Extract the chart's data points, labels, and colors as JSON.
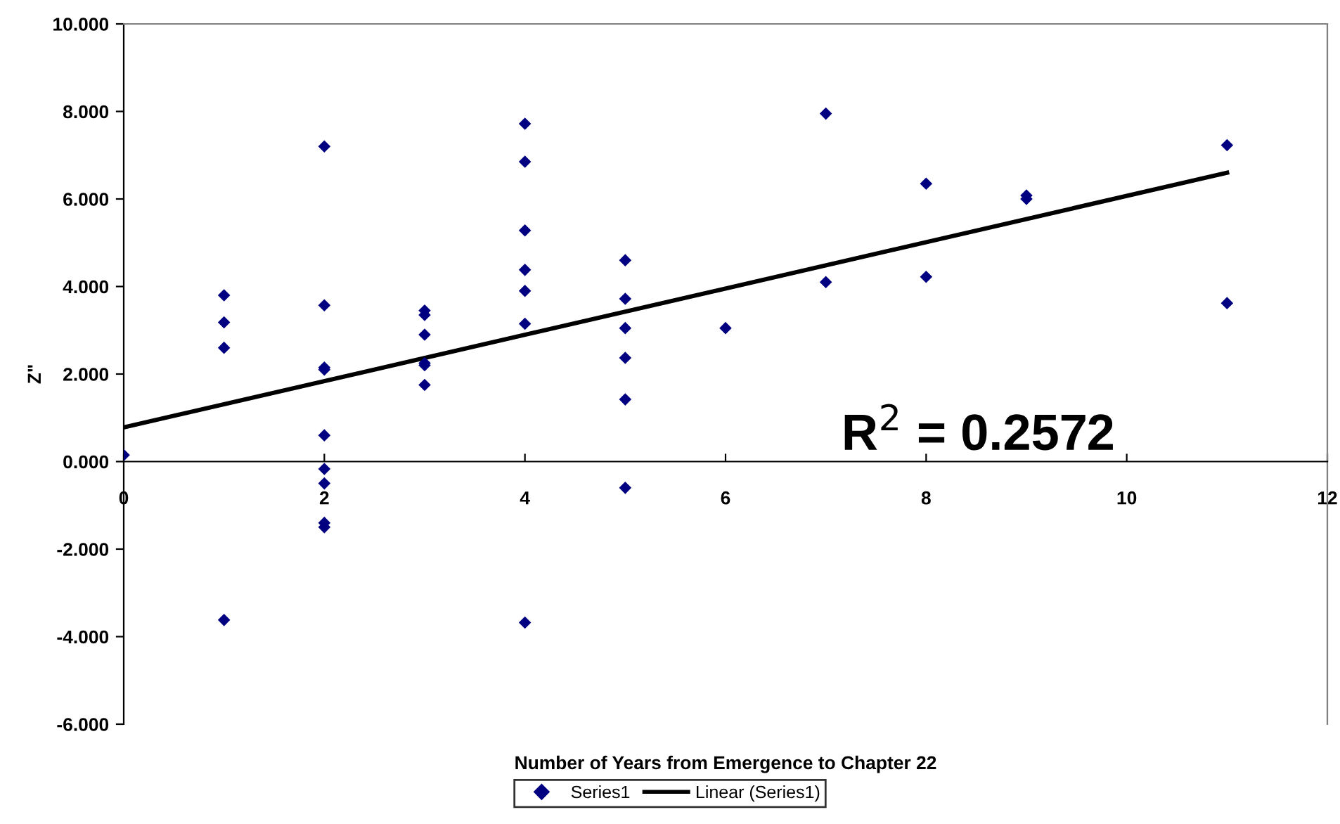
{
  "chart_data": {
    "type": "scatter",
    "xlabel": "Number of Years from Emergence to Chapter 22",
    "ylabel": "Z\"",
    "xlim": [
      0,
      12
    ],
    "xticks": [
      0,
      2,
      4,
      6,
      8,
      10,
      12
    ],
    "ylim": [
      -6,
      10
    ],
    "yticks": [
      {
        "value": -6,
        "label": "-6.000"
      },
      {
        "value": -4,
        "label": "-4.000"
      },
      {
        "value": -2,
        "label": "-2.000"
      },
      {
        "value": 0,
        "label": "0.000"
      },
      {
        "value": 2,
        "label": "2.000"
      },
      {
        "value": 4,
        "label": "4.000"
      },
      {
        "value": 6,
        "label": "6.000"
      },
      {
        "value": 8,
        "label": "8.000"
      },
      {
        "value": 10,
        "label": "10.000"
      }
    ],
    "grid": false,
    "legend": "bottom",
    "annotations": [
      "R$^{2}$ = 0.2572"
    ],
    "series": [
      {
        "name": "Series1",
        "marker": "diamond",
        "color": "#000080",
        "x": [
          0,
          1,
          1,
          1,
          1,
          2,
          2,
          2,
          2,
          2,
          2,
          2,
          2,
          2,
          3,
          3,
          3,
          3,
          3,
          3,
          4,
          4,
          4,
          4,
          4,
          4,
          4,
          5,
          5,
          5,
          5,
          5,
          5,
          6,
          7,
          7,
          8,
          8,
          9,
          9,
          11,
          11
        ],
        "values": [
          0.15,
          3.8,
          3.18,
          2.6,
          -3.62,
          7.2,
          3.57,
          2.15,
          2.1,
          0.6,
          -0.17,
          -0.5,
          -1.4,
          -1.5,
          3.45,
          3.35,
          2.9,
          2.25,
          2.2,
          1.75,
          7.72,
          6.85,
          5.28,
          4.38,
          3.9,
          3.15,
          -3.68,
          4.6,
          3.72,
          3.05,
          2.37,
          1.42,
          -0.6,
          3.05,
          7.95,
          4.1,
          6.35,
          4.22,
          6.08,
          6.0,
          7.23,
          3.62
        ]
      },
      {
        "name": "Linear (Series1)",
        "type": "line",
        "marker": "none",
        "line_style": "solid",
        "color": "#000000",
        "x": [
          0,
          11
        ],
        "values": [
          0.78,
          6.6
        ]
      }
    ]
  }
}
